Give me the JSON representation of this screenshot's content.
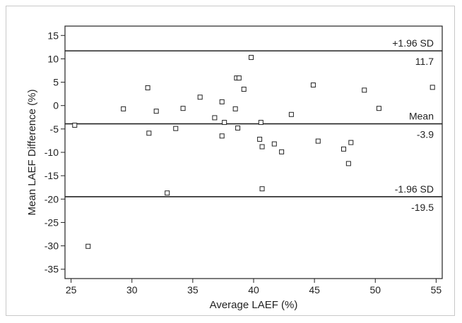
{
  "chart_data": {
    "type": "scatter",
    "title": "",
    "xlabel": "Average LAEF (%)",
    "ylabel": "Mean LAEF Difference (%)",
    "xlim": [
      24.5,
      55.5
    ],
    "ylim": [
      -37,
      17
    ],
    "xticks": [
      "25",
      "30",
      "35",
      "40",
      "45",
      "50",
      "55"
    ],
    "yticks": [
      "15",
      "10",
      "5",
      "0",
      "-5",
      "-10",
      "-15",
      "-20",
      "-25",
      "-30",
      "-35"
    ],
    "grid": false,
    "marker": "open-square",
    "reference_lines": [
      {
        "y": 11.7,
        "label_top": "+1.96 SD",
        "label_bottom": "11.7"
      },
      {
        "y": -3.9,
        "label_top": "Mean",
        "label_bottom": "-3.9"
      },
      {
        "y": -19.5,
        "label_top": "-1.96 SD",
        "label_bottom": "-19.5"
      }
    ],
    "points": [
      {
        "x": 25.3,
        "y": -4.2
      },
      {
        "x": 26.4,
        "y": -30.1
      },
      {
        "x": 29.3,
        "y": -0.7
      },
      {
        "x": 31.3,
        "y": 3.8
      },
      {
        "x": 31.4,
        "y": -5.9
      },
      {
        "x": 32.0,
        "y": -1.2
      },
      {
        "x": 32.9,
        "y": -18.7
      },
      {
        "x": 33.6,
        "y": -4.9
      },
      {
        "x": 34.2,
        "y": -0.6
      },
      {
        "x": 35.6,
        "y": 1.8
      },
      {
        "x": 36.8,
        "y": -2.6
      },
      {
        "x": 37.4,
        "y": 0.8
      },
      {
        "x": 37.4,
        "y": -6.5
      },
      {
        "x": 37.6,
        "y": -3.6
      },
      {
        "x": 38.5,
        "y": -0.7
      },
      {
        "x": 38.6,
        "y": 5.9
      },
      {
        "x": 38.7,
        "y": -4.8
      },
      {
        "x": 38.8,
        "y": 5.9
      },
      {
        "x": 39.2,
        "y": 3.5
      },
      {
        "x": 39.8,
        "y": 10.3
      },
      {
        "x": 40.5,
        "y": -7.2
      },
      {
        "x": 40.6,
        "y": -3.6
      },
      {
        "x": 40.7,
        "y": -8.8
      },
      {
        "x": 40.7,
        "y": -17.8
      },
      {
        "x": 41.7,
        "y": -8.2
      },
      {
        "x": 42.3,
        "y": -9.9
      },
      {
        "x": 43.1,
        "y": -1.9
      },
      {
        "x": 44.9,
        "y": 4.4
      },
      {
        "x": 45.3,
        "y": -7.6
      },
      {
        "x": 47.4,
        "y": -9.3
      },
      {
        "x": 47.8,
        "y": -12.4
      },
      {
        "x": 48.0,
        "y": -7.9
      },
      {
        "x": 49.1,
        "y": 3.3
      },
      {
        "x": 50.3,
        "y": -0.6
      },
      {
        "x": 54.7,
        "y": 3.9
      }
    ]
  }
}
